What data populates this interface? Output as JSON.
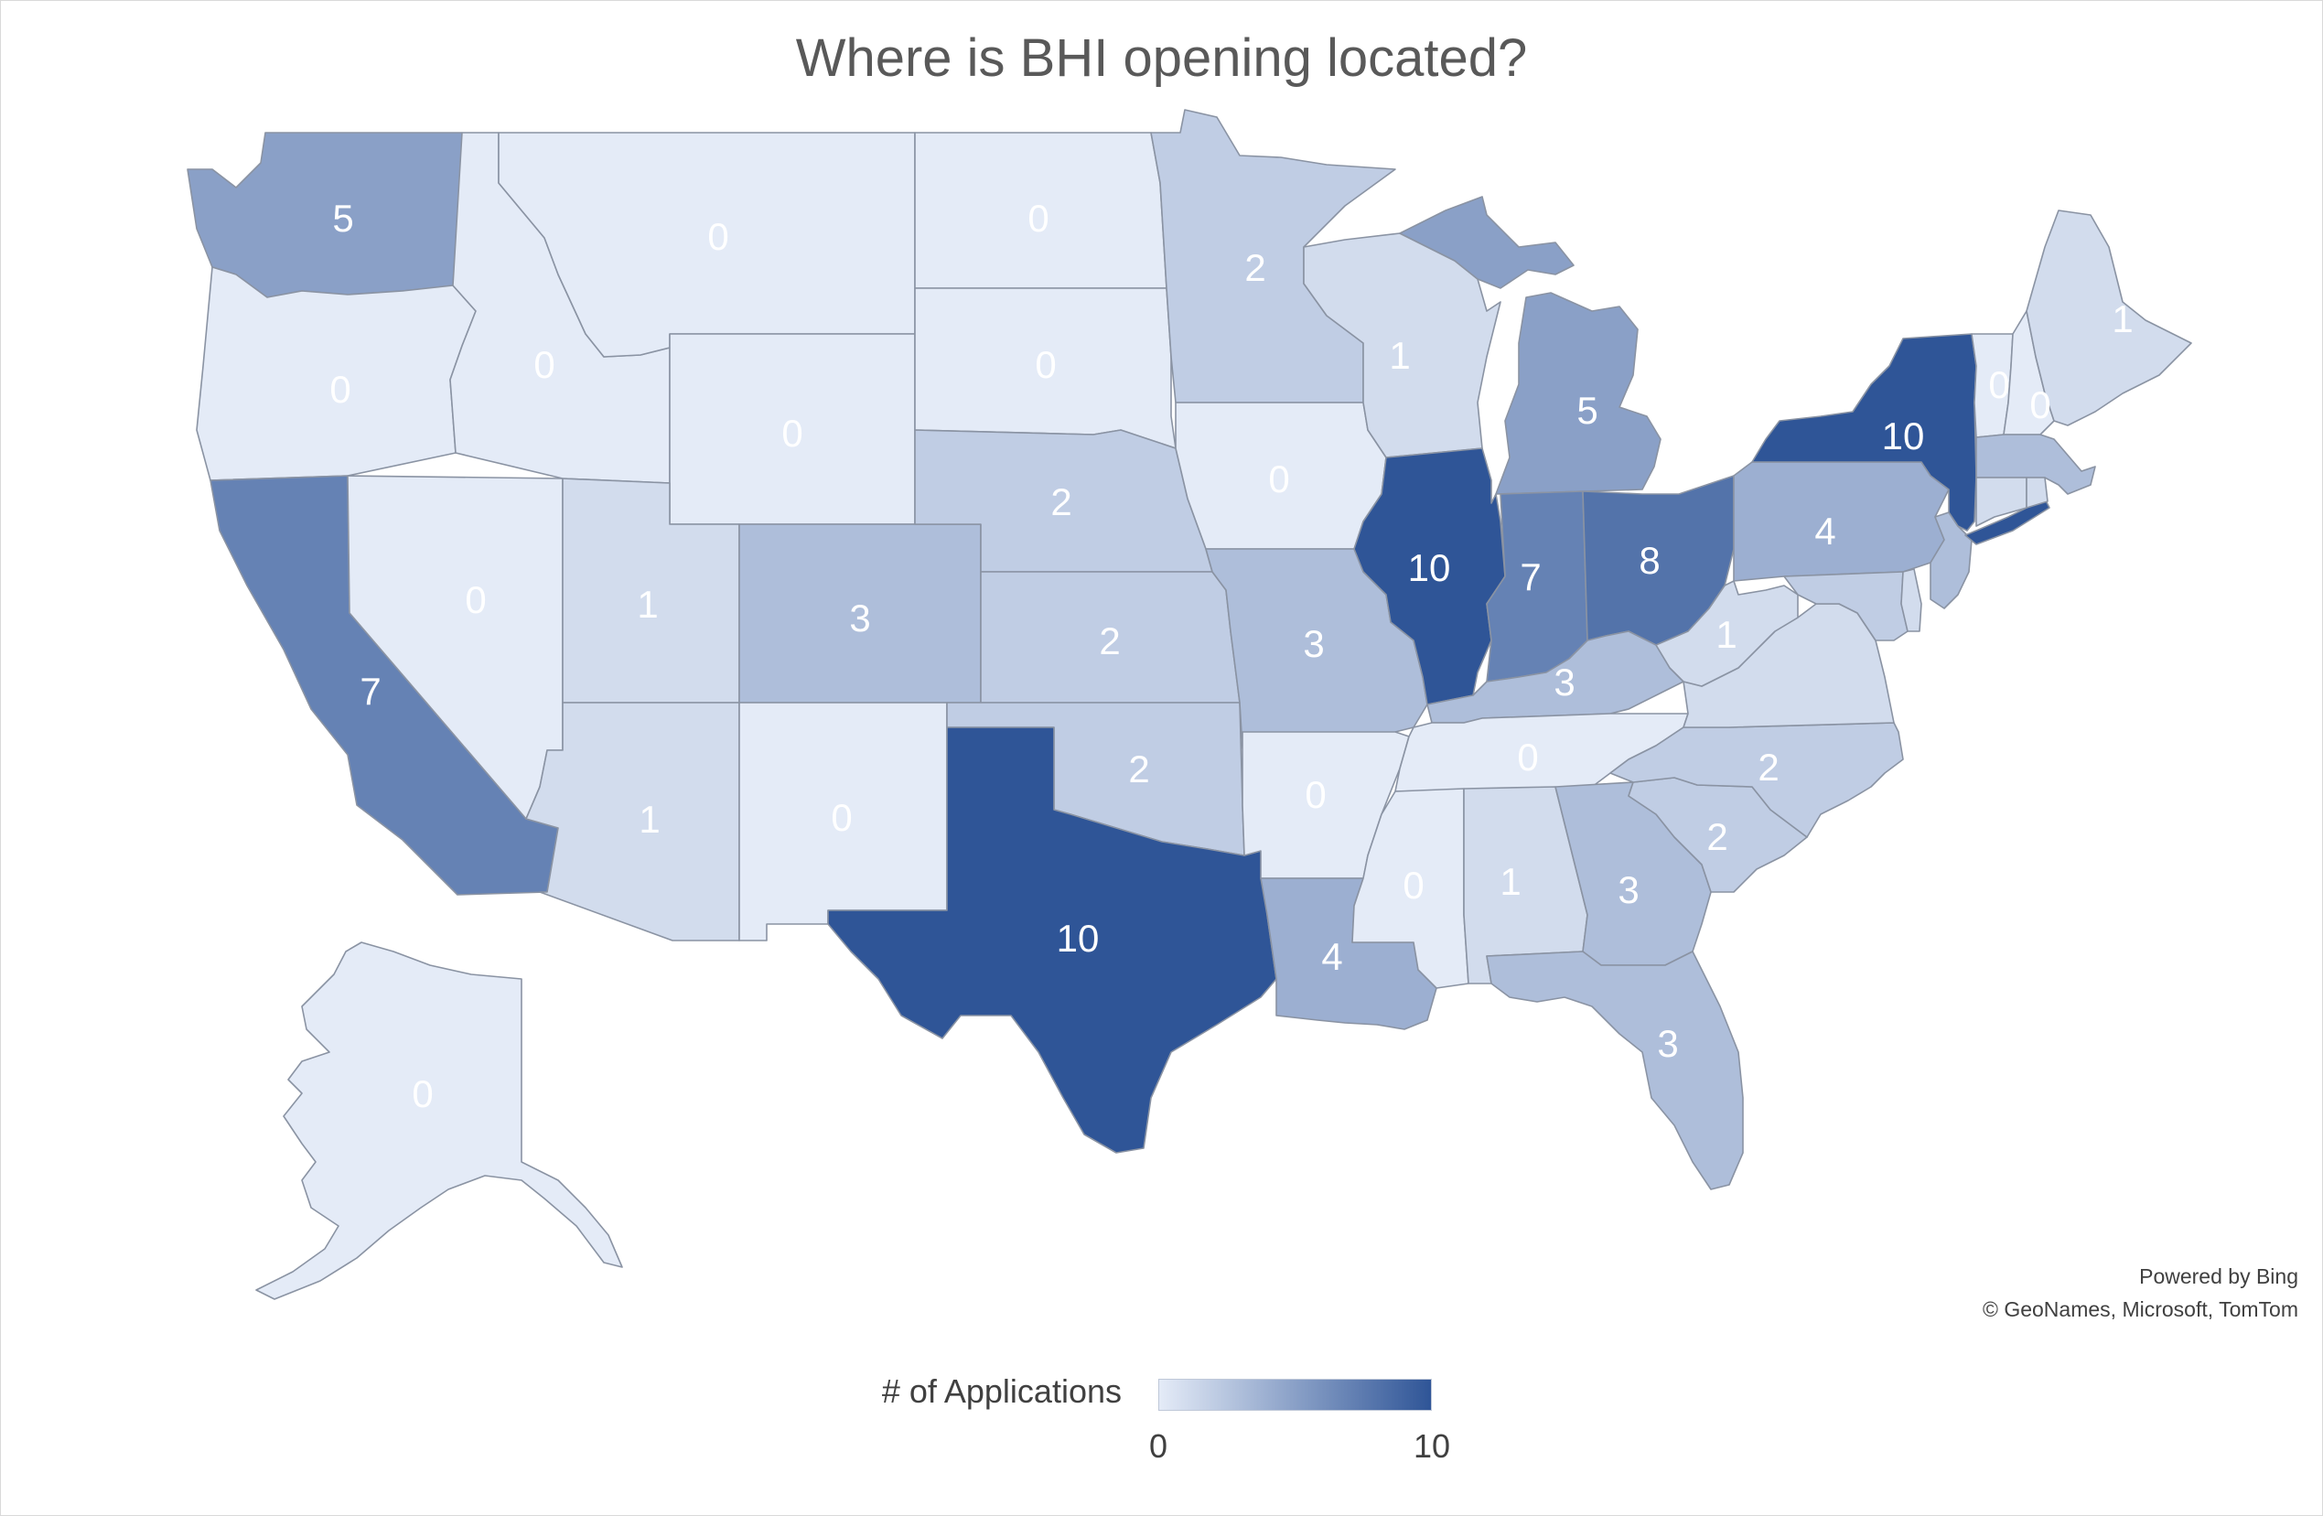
{
  "title": "Where is BHI opening located?",
  "credits": {
    "line1": "Powered by Bing",
    "line2": "© GeoNames, Microsoft, TomTom"
  },
  "legend": {
    "title": "# of Applications",
    "min_label": "0",
    "max_label": "10",
    "color_low": "#e4ebf7",
    "color_high": "#2f5597"
  },
  "chart_data": {
    "type": "choropleth",
    "measure": "# of Applications",
    "range": [
      0,
      10
    ],
    "regions": [
      {
        "name": "Washington",
        "value": 5
      },
      {
        "name": "Oregon",
        "value": 0
      },
      {
        "name": "California",
        "value": 7
      },
      {
        "name": "Nevada",
        "value": 0
      },
      {
        "name": "Idaho",
        "value": 0
      },
      {
        "name": "Montana",
        "value": 0
      },
      {
        "name": "Wyoming",
        "value": 0
      },
      {
        "name": "Utah",
        "value": 1
      },
      {
        "name": "Arizona",
        "value": 1
      },
      {
        "name": "Colorado",
        "value": 3
      },
      {
        "name": "New Mexico",
        "value": 0
      },
      {
        "name": "North Dakota",
        "value": 0
      },
      {
        "name": "South Dakota",
        "value": 0
      },
      {
        "name": "Nebraska",
        "value": 2
      },
      {
        "name": "Kansas",
        "value": 2
      },
      {
        "name": "Oklahoma",
        "value": 2
      },
      {
        "name": "Texas",
        "value": 10
      },
      {
        "name": "Minnesota",
        "value": 2
      },
      {
        "name": "Iowa",
        "value": 0
      },
      {
        "name": "Missouri",
        "value": 3
      },
      {
        "name": "Arkansas",
        "value": 0
      },
      {
        "name": "Louisiana",
        "value": 4
      },
      {
        "name": "Wisconsin",
        "value": 1
      },
      {
        "name": "Illinois",
        "value": 10
      },
      {
        "name": "Michigan",
        "value": 5
      },
      {
        "name": "Indiana",
        "value": 7
      },
      {
        "name": "Ohio",
        "value": 8
      },
      {
        "name": "Kentucky",
        "value": 3
      },
      {
        "name": "Tennessee",
        "value": 0
      },
      {
        "name": "Mississippi",
        "value": 0
      },
      {
        "name": "Alabama",
        "value": 1
      },
      {
        "name": "Georgia",
        "value": 3
      },
      {
        "name": "Florida",
        "value": 3
      },
      {
        "name": "South Carolina",
        "value": 2
      },
      {
        "name": "North Carolina",
        "value": 2
      },
      {
        "name": "West Virginia",
        "value": 1
      },
      {
        "name": "Pennsylvania",
        "value": 4
      },
      {
        "name": "New York",
        "value": 10
      },
      {
        "name": "Vermont",
        "value": 0
      },
      {
        "name": "New Hampshire",
        "value": 0
      },
      {
        "name": "Maine",
        "value": 1
      },
      {
        "name": "Massachusetts",
        "value": 3
      },
      {
        "name": "Connecticut",
        "value": 1
      },
      {
        "name": "Rhode Island",
        "value": 1
      },
      {
        "name": "New Jersey",
        "value": 3
      },
      {
        "name": "Delaware",
        "value": 1
      },
      {
        "name": "Maryland",
        "value": 2
      },
      {
        "name": "Virginia",
        "value": 1
      },
      {
        "name": "Alaska",
        "value": 0
      }
    ]
  }
}
